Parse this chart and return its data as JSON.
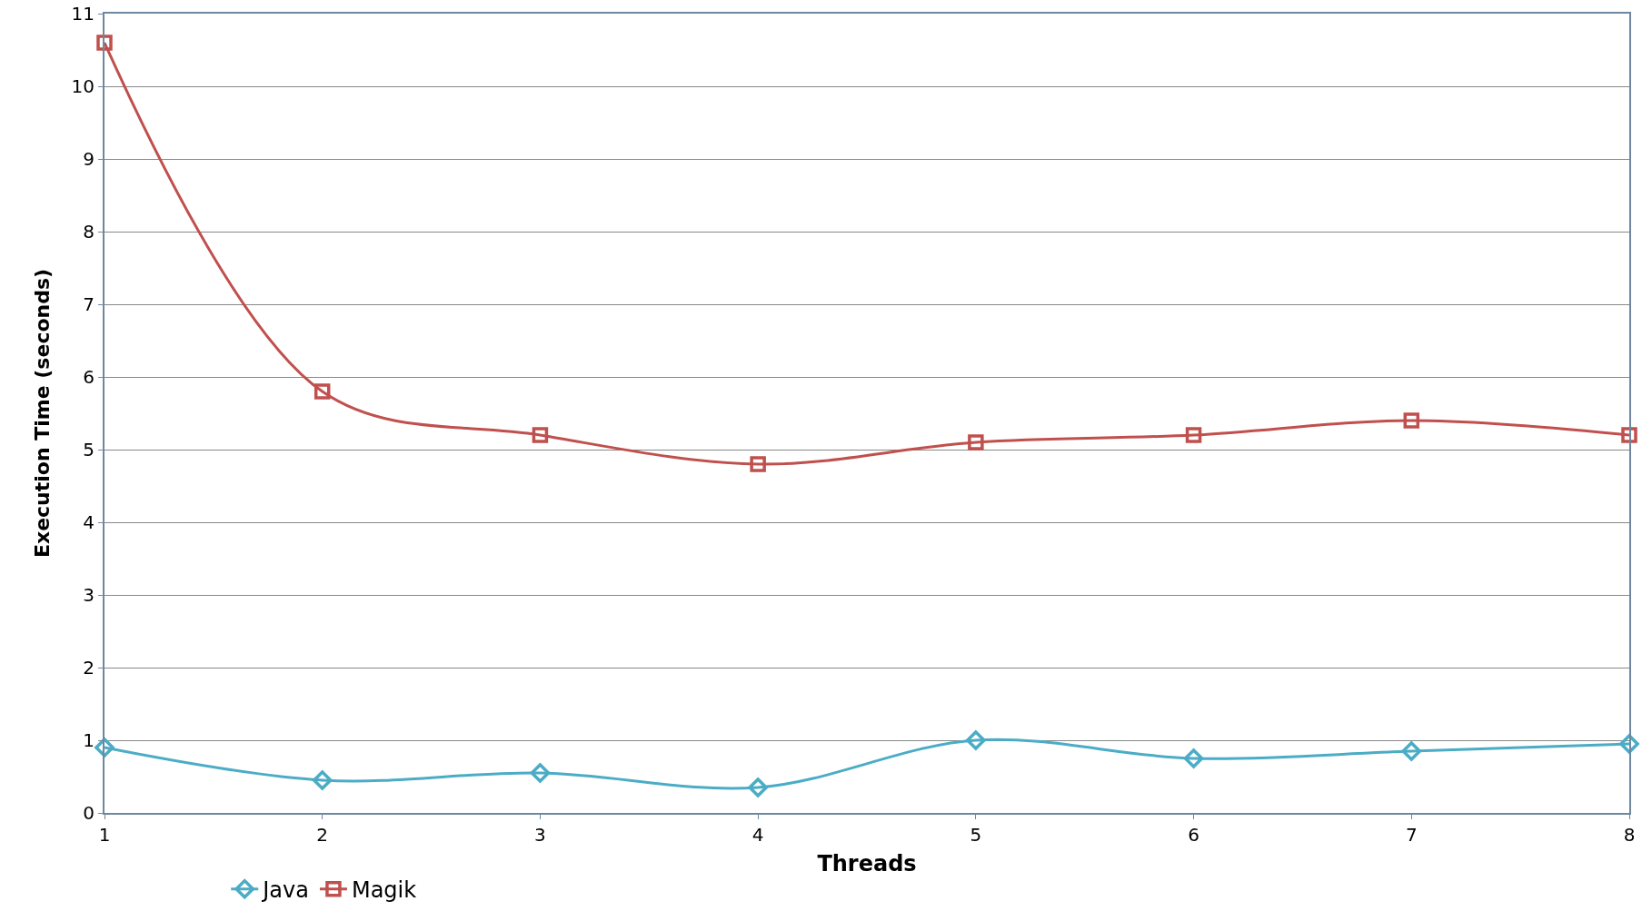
{
  "chart_data": {
    "type": "line",
    "xlabel": "Threads",
    "ylabel": "Execution Time (seconds)",
    "x": [
      1,
      2,
      3,
      4,
      5,
      6,
      7,
      8
    ],
    "series": [
      {
        "name": "Java",
        "color": "#4bacc6",
        "marker": "diamond",
        "values": [
          0.9,
          0.45,
          0.55,
          0.35,
          1.0,
          0.75,
          0.85,
          0.95
        ]
      },
      {
        "name": "Magik",
        "color": "#c0504d",
        "marker": "square",
        "values": [
          10.6,
          5.8,
          5.2,
          4.8,
          5.1,
          5.2,
          5.4,
          5.2
        ]
      }
    ],
    "xlim": [
      1,
      8
    ],
    "xticks": [
      1,
      2,
      3,
      4,
      5,
      6,
      7,
      8
    ],
    "ylim": [
      0,
      11
    ],
    "yticks": [
      0,
      1,
      2,
      3,
      4,
      5,
      6,
      7,
      8,
      9,
      10,
      11
    ],
    "grid": "y",
    "legend": "bottom left",
    "line_style": "solid"
  }
}
